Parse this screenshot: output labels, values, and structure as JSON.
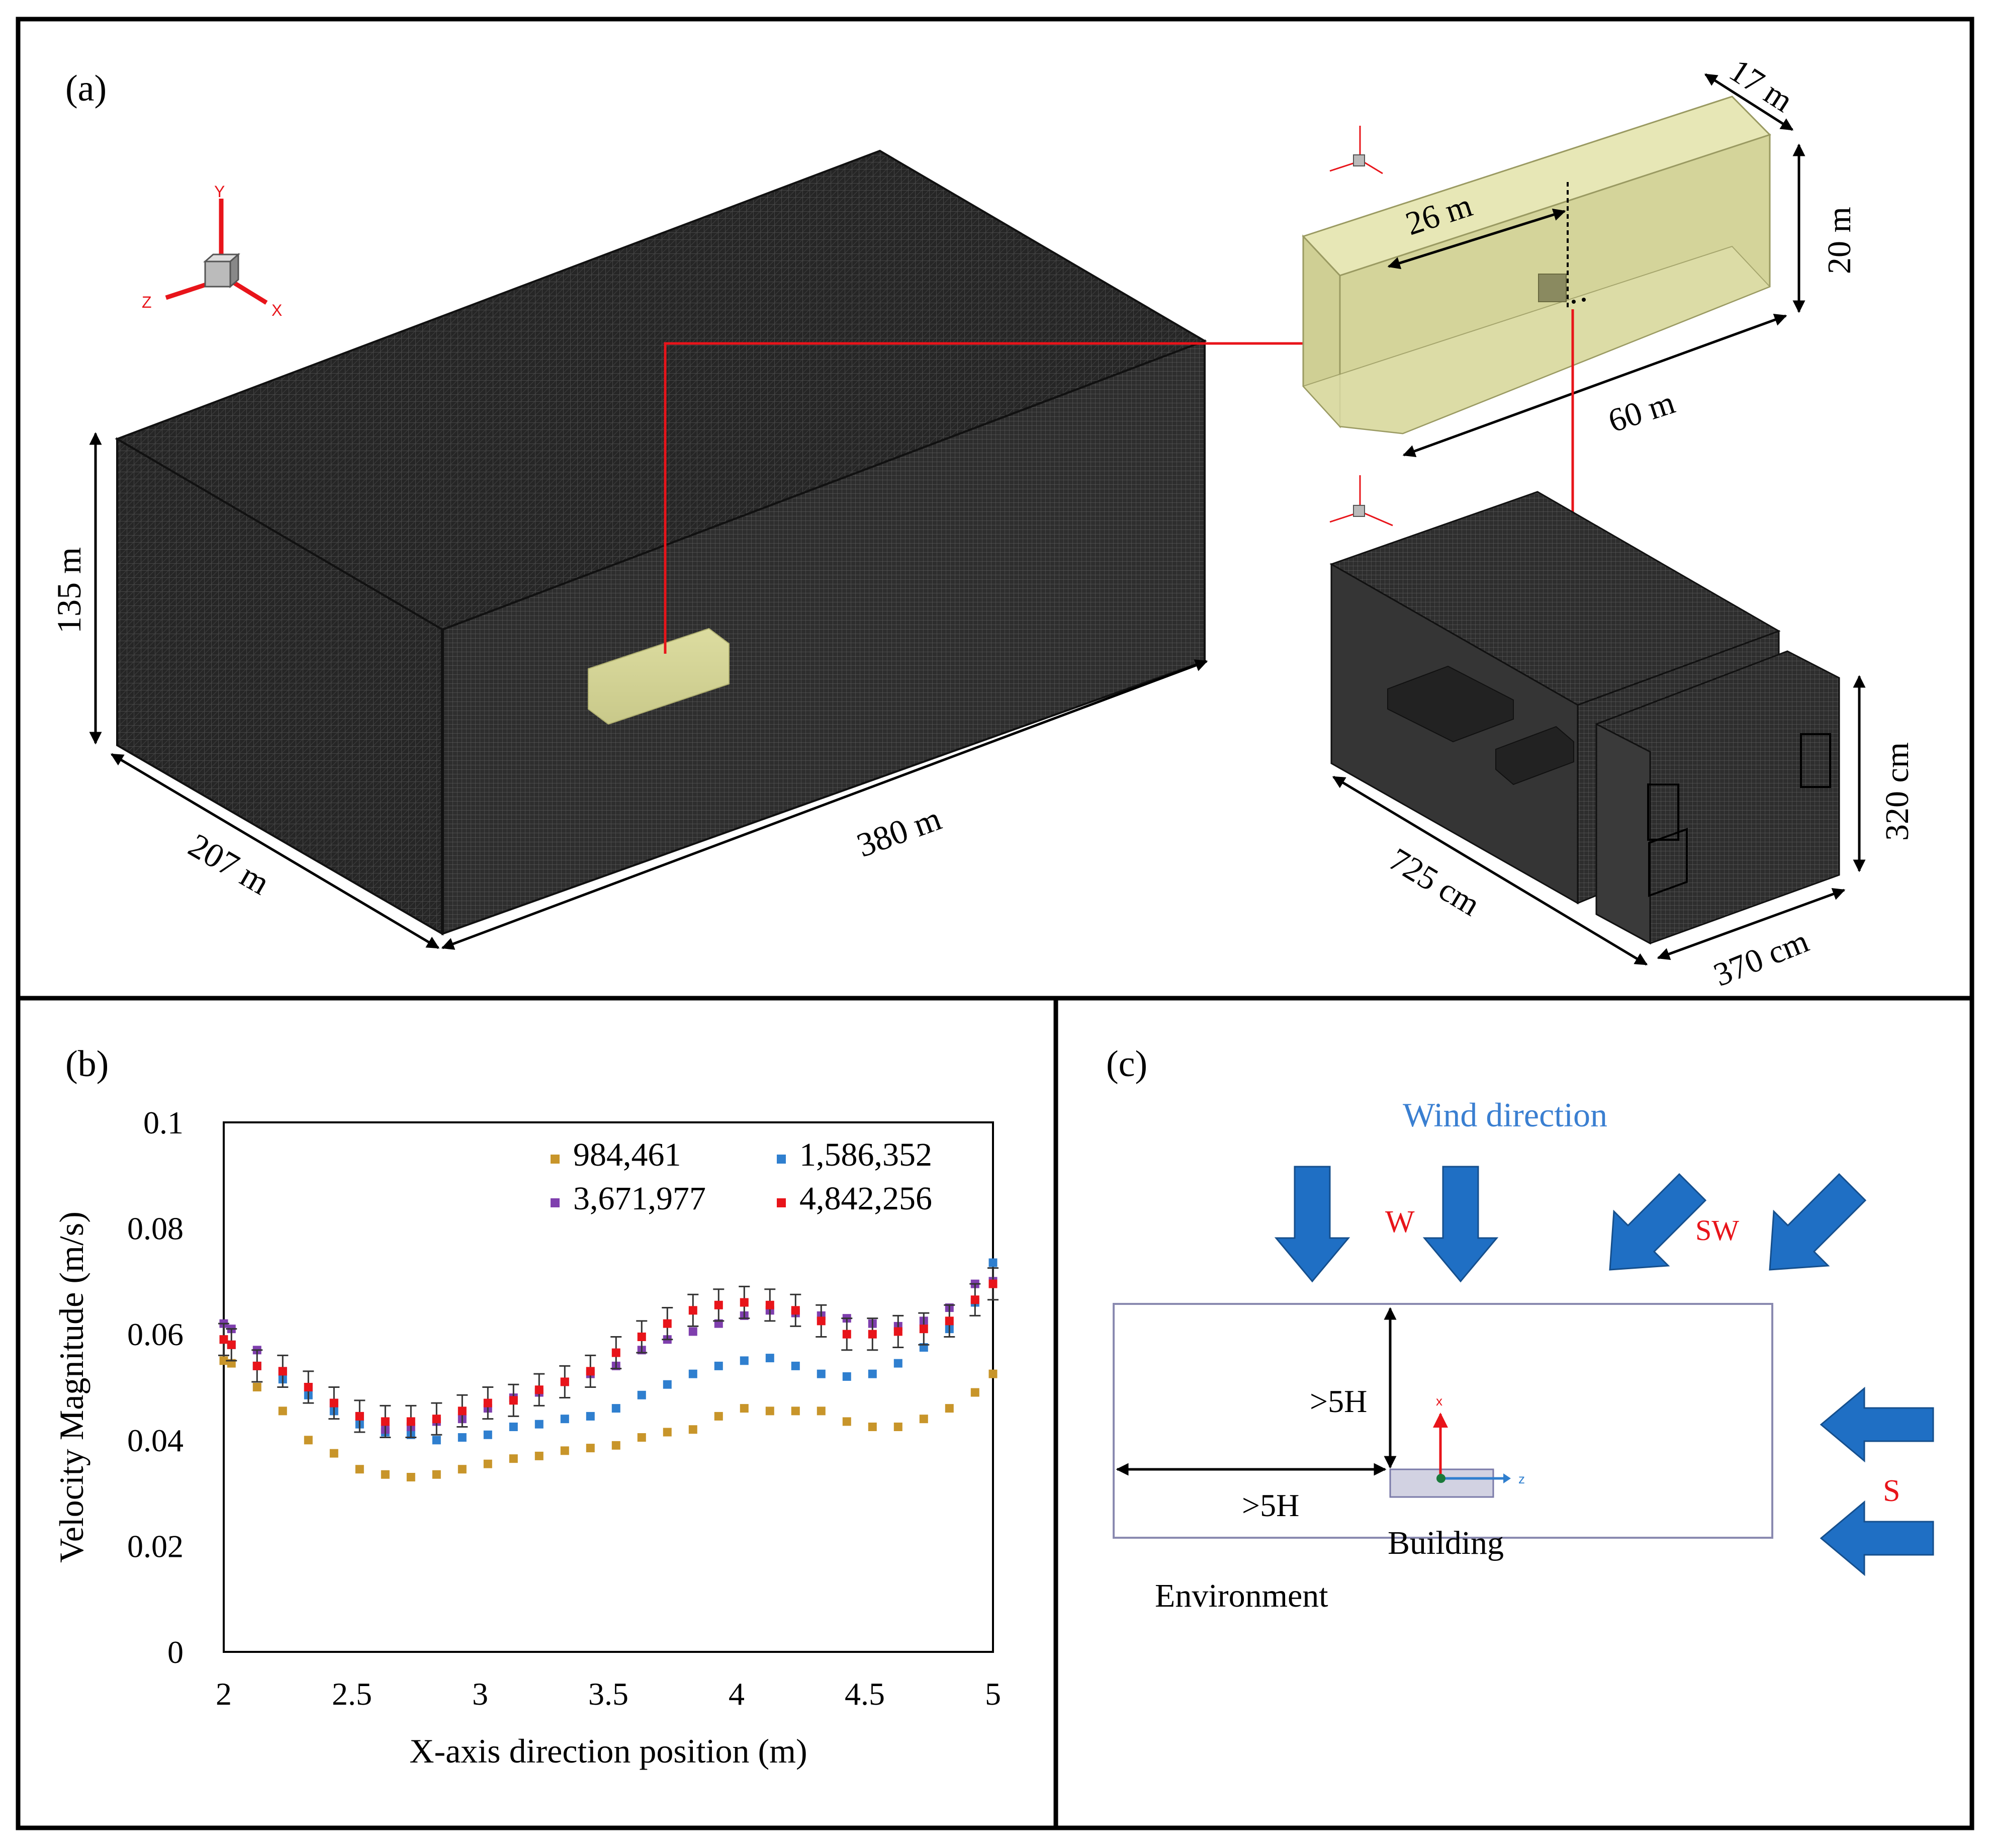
{
  "panel_a": {
    "label": "(a)",
    "domain_dims": {
      "height": "135 m",
      "depth": "207 m",
      "length": "380 m"
    },
    "sub_domain_dims": {
      "width": "17 m",
      "height": "20 m",
      "length": "60 m",
      "distance": "26 m"
    },
    "room_dims": {
      "height": "320 cm",
      "length": "725 cm",
      "width": "370 cm"
    },
    "axis_labels": {
      "x": "X",
      "y": "Y",
      "z": "Z"
    }
  },
  "panel_b": {
    "label": "(b)"
  },
  "panel_c": {
    "label": "(c)",
    "wind_title": "Wind direction",
    "wind_w": "W",
    "wind_sw": "SW",
    "wind_s": "S",
    "dist_vertical": ">5H",
    "dist_horizontal": ">5H",
    "building": "Building",
    "environment": "Environment",
    "axis_x": "x",
    "axis_z": "z"
  },
  "colors": {
    "series_984461": "#c8952a",
    "series_1586352": "#2f7fcf",
    "series_3671977": "#7f3fae",
    "series_4842256": "#e8141a",
    "wind_arrow": "#1f6fc4",
    "wind_title": "#3a7fd1",
    "wind_label": "#e8141a",
    "red_arrow": "#e8141a",
    "yellow_box": "#d8d89a"
  },
  "chart_data": {
    "type": "scatter",
    "title": "",
    "xlabel": "X-axis direction position (m)",
    "ylabel": "Velocity Magnitude (m/s)",
    "xlim": [
      2,
      5
    ],
    "ylim": [
      0,
      0.1
    ],
    "xticks": [
      "2",
      "2.5",
      "3",
      "3.5",
      "4",
      "4.5",
      "5"
    ],
    "yticks": [
      "0",
      "0.02",
      "0.04",
      "0.06",
      "0.08",
      "0.1"
    ],
    "legend_position": "top-right",
    "x": [
      2.0,
      2.03,
      2.13,
      2.23,
      2.33,
      2.43,
      2.53,
      2.63,
      2.73,
      2.83,
      2.93,
      3.03,
      3.13,
      3.23,
      3.33,
      3.43,
      3.53,
      3.63,
      3.73,
      3.83,
      3.93,
      4.03,
      4.13,
      4.23,
      4.33,
      4.43,
      4.53,
      4.63,
      4.73,
      4.83,
      4.93,
      5.0
    ],
    "series": [
      {
        "name": "984,461",
        "values": [
          0.055,
          0.0545,
          0.05,
          0.0455,
          0.04,
          0.0375,
          0.0345,
          0.0335,
          0.033,
          0.0335,
          0.0345,
          0.0355,
          0.0365,
          0.037,
          0.038,
          0.0385,
          0.039,
          0.0405,
          0.0415,
          0.042,
          0.0445,
          0.046,
          0.0455,
          0.0455,
          0.0455,
          0.0435,
          0.0425,
          0.0425,
          0.044,
          0.046,
          0.049,
          0.0525
        ]
      },
      {
        "name": "1,586,352",
        "values": [
          0.059,
          0.058,
          0.054,
          0.0515,
          0.0485,
          0.0455,
          0.043,
          0.0415,
          0.041,
          0.04,
          0.0405,
          0.041,
          0.0425,
          0.043,
          0.044,
          0.0445,
          0.046,
          0.0485,
          0.0505,
          0.0525,
          0.054,
          0.055,
          0.0555,
          0.054,
          0.0525,
          0.052,
          0.0525,
          0.0545,
          0.0575,
          0.061,
          0.066,
          0.0735
        ]
      },
      {
        "name": "3,671,977",
        "values": [
          0.062,
          0.061,
          0.057,
          0.053,
          0.05,
          0.047,
          0.0445,
          0.042,
          0.0425,
          0.0435,
          0.044,
          0.046,
          0.048,
          0.049,
          0.051,
          0.0525,
          0.054,
          0.057,
          0.059,
          0.0605,
          0.062,
          0.0635,
          0.0645,
          0.064,
          0.0635,
          0.063,
          0.062,
          0.0615,
          0.0625,
          0.065,
          0.0695,
          0.07
        ]
      },
      {
        "name": "4,842,256",
        "values": [
          0.059,
          0.058,
          0.054,
          0.053,
          0.05,
          0.047,
          0.0445,
          0.0435,
          0.0435,
          0.044,
          0.0455,
          0.047,
          0.0475,
          0.0495,
          0.051,
          0.053,
          0.0565,
          0.0595,
          0.062,
          0.0645,
          0.0655,
          0.066,
          0.0655,
          0.0645,
          0.0625,
          0.06,
          0.06,
          0.0605,
          0.061,
          0.0625,
          0.0665,
          0.0695
        ]
      }
    ],
    "error_bar_series": "4,842,256",
    "error_magnitude": 0.003
  }
}
